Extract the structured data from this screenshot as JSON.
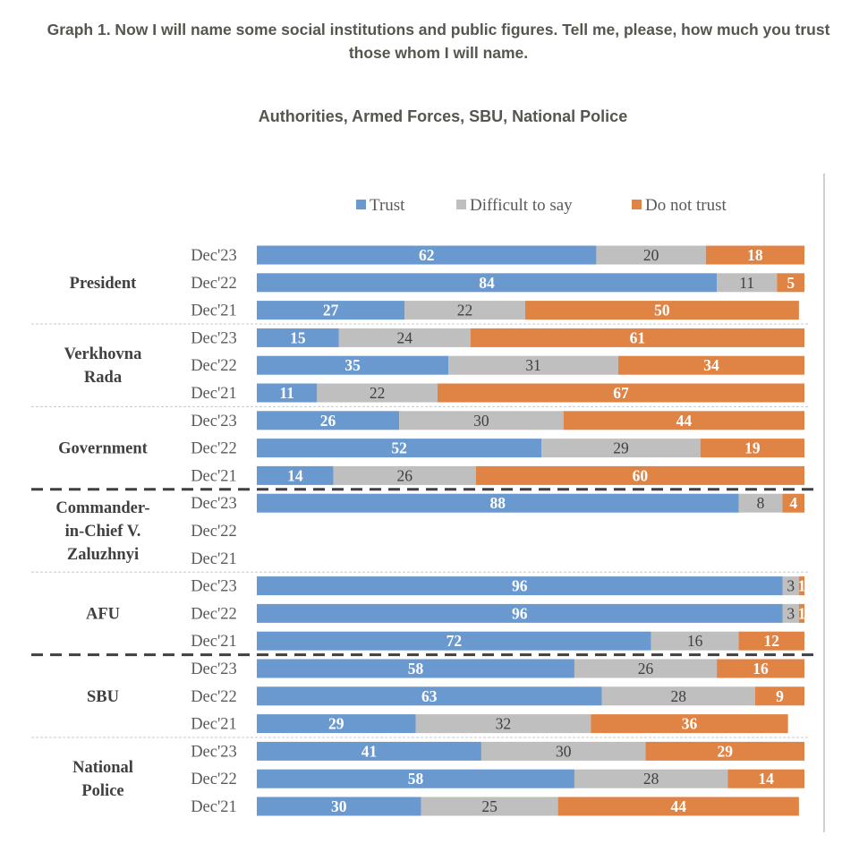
{
  "header": {
    "title": "Graph 1. Now I will name some social institutions and public figures. Tell me, please, how much you trust those whom I will name.",
    "subtitle": "Authorities, Armed Forces, SBU, National Police"
  },
  "chart_data": {
    "type": "bar",
    "orientation": "horizontal",
    "stacked": true,
    "title": "Authorities, Armed Forces, SBU, National Police",
    "xlabel": "",
    "ylabel": "",
    "xlim": [
      0,
      100
    ],
    "unit": "%",
    "grid": false,
    "legend_position": "top-center",
    "legend": [
      {
        "name": "Trust",
        "color": "#6a99d0"
      },
      {
        "name": "Difficult to say",
        "color": "#bfbfbf"
      },
      {
        "name": "Do not trust",
        "color": "#e08445"
      }
    ],
    "series_names": [
      "Trust",
      "Difficult to say",
      "Do not trust"
    ],
    "groups": [
      {
        "label": "President",
        "separator_after": "dotted",
        "rows": [
          {
            "period": "Dec'23",
            "values": [
              62,
              20,
              18
            ]
          },
          {
            "period": "Dec'22",
            "values": [
              84,
              11,
              5
            ]
          },
          {
            "period": "Dec'21",
            "values": [
              27,
              22,
              50
            ]
          }
        ]
      },
      {
        "label": "Verkhovna Rada",
        "separator_after": "dotted",
        "rows": [
          {
            "period": "Dec'23",
            "values": [
              15,
              24,
              61
            ]
          },
          {
            "period": "Dec'22",
            "values": [
              35,
              31,
              34
            ]
          },
          {
            "period": "Dec'21",
            "values": [
              11,
              22,
              67
            ]
          }
        ]
      },
      {
        "label": "Government",
        "separator_after": "dashed",
        "rows": [
          {
            "period": "Dec'23",
            "values": [
              26,
              30,
              44
            ]
          },
          {
            "period": "Dec'22",
            "values": [
              52,
              29,
              19
            ]
          },
          {
            "period": "Dec'21",
            "values": [
              14,
              26,
              60
            ]
          }
        ]
      },
      {
        "label": "Commander-in-Chief V. Zaluzhnyi",
        "separator_after": "dotted",
        "rows": [
          {
            "period": "Dec'23",
            "values": [
              88,
              8,
              4
            ]
          },
          {
            "period": "Dec'22",
            "values": null
          },
          {
            "period": "Dec'21",
            "values": null
          }
        ]
      },
      {
        "label": "AFU",
        "separator_after": "dashed",
        "rows": [
          {
            "period": "Dec'23",
            "values": [
              96,
              3,
              1
            ]
          },
          {
            "period": "Dec'22",
            "values": [
              96,
              3,
              1
            ]
          },
          {
            "period": "Dec'21",
            "values": [
              72,
              16,
              12
            ]
          }
        ]
      },
      {
        "label": "SBU",
        "separator_after": "dotted",
        "rows": [
          {
            "period": "Dec'23",
            "values": [
              58,
              26,
              16
            ]
          },
          {
            "period": "Dec'22",
            "values": [
              63,
              28,
              9
            ]
          },
          {
            "period": "Dec'21",
            "values": [
              29,
              32,
              36
            ]
          }
        ]
      },
      {
        "label": "National Police",
        "separator_after": null,
        "rows": [
          {
            "period": "Dec'23",
            "values": [
              41,
              30,
              29
            ]
          },
          {
            "period": "Dec'22",
            "values": [
              58,
              28,
              14
            ]
          },
          {
            "period": "Dec'21",
            "values": [
              30,
              25,
              44
            ]
          }
        ]
      }
    ]
  }
}
